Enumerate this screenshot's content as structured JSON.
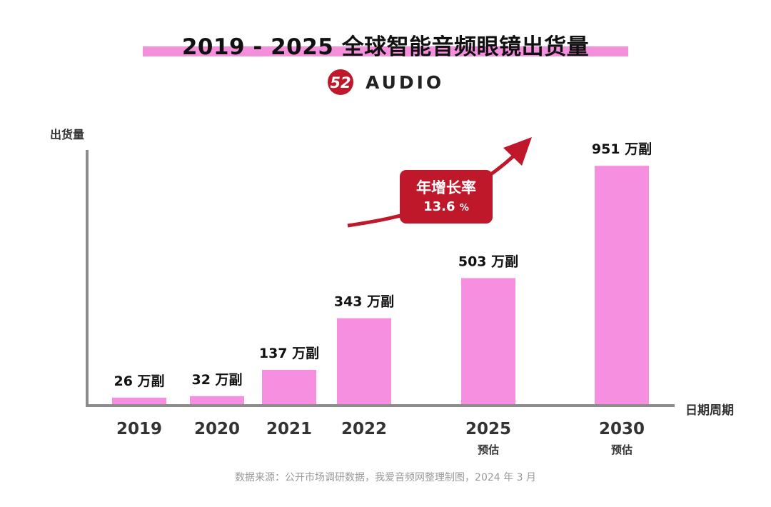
{
  "header": {
    "title": "2019 - 2025 全球智能音频眼镜出货量",
    "logo_mark_text": "52",
    "logo_text": "AUDIO"
  },
  "annotation": {
    "label": "年增长率",
    "value": "13.6",
    "unit": "%"
  },
  "footer": {
    "source": "数据来源：公开市场调研数据，我爱音频网整理制图，2024 年 3 月"
  },
  "colors": {
    "bar": "#f78fe0",
    "title_band": "#f48fdc",
    "accent_red": "#c0182b",
    "axis": "#8c8c8c"
  },
  "chart_data": {
    "type": "bar",
    "title": "2019 - 2025 全球智能音频眼镜出货量",
    "xlabel": "日期周期",
    "ylabel": "出货量",
    "unit": "万副",
    "categories": [
      "2019",
      "2020",
      "2021",
      "2022",
      "2025",
      "2030"
    ],
    "category_notes": [
      "",
      "",
      "",
      "",
      "预估",
      "预估"
    ],
    "values": [
      26,
      32,
      137,
      343,
      503,
      951
    ],
    "data_labels": [
      "26 万副",
      "32 万副",
      "137 万副",
      "343 万副",
      "503 万副",
      "951 万副"
    ],
    "ylim": [
      0,
      1020
    ],
    "grid": false,
    "legend": "none"
  }
}
